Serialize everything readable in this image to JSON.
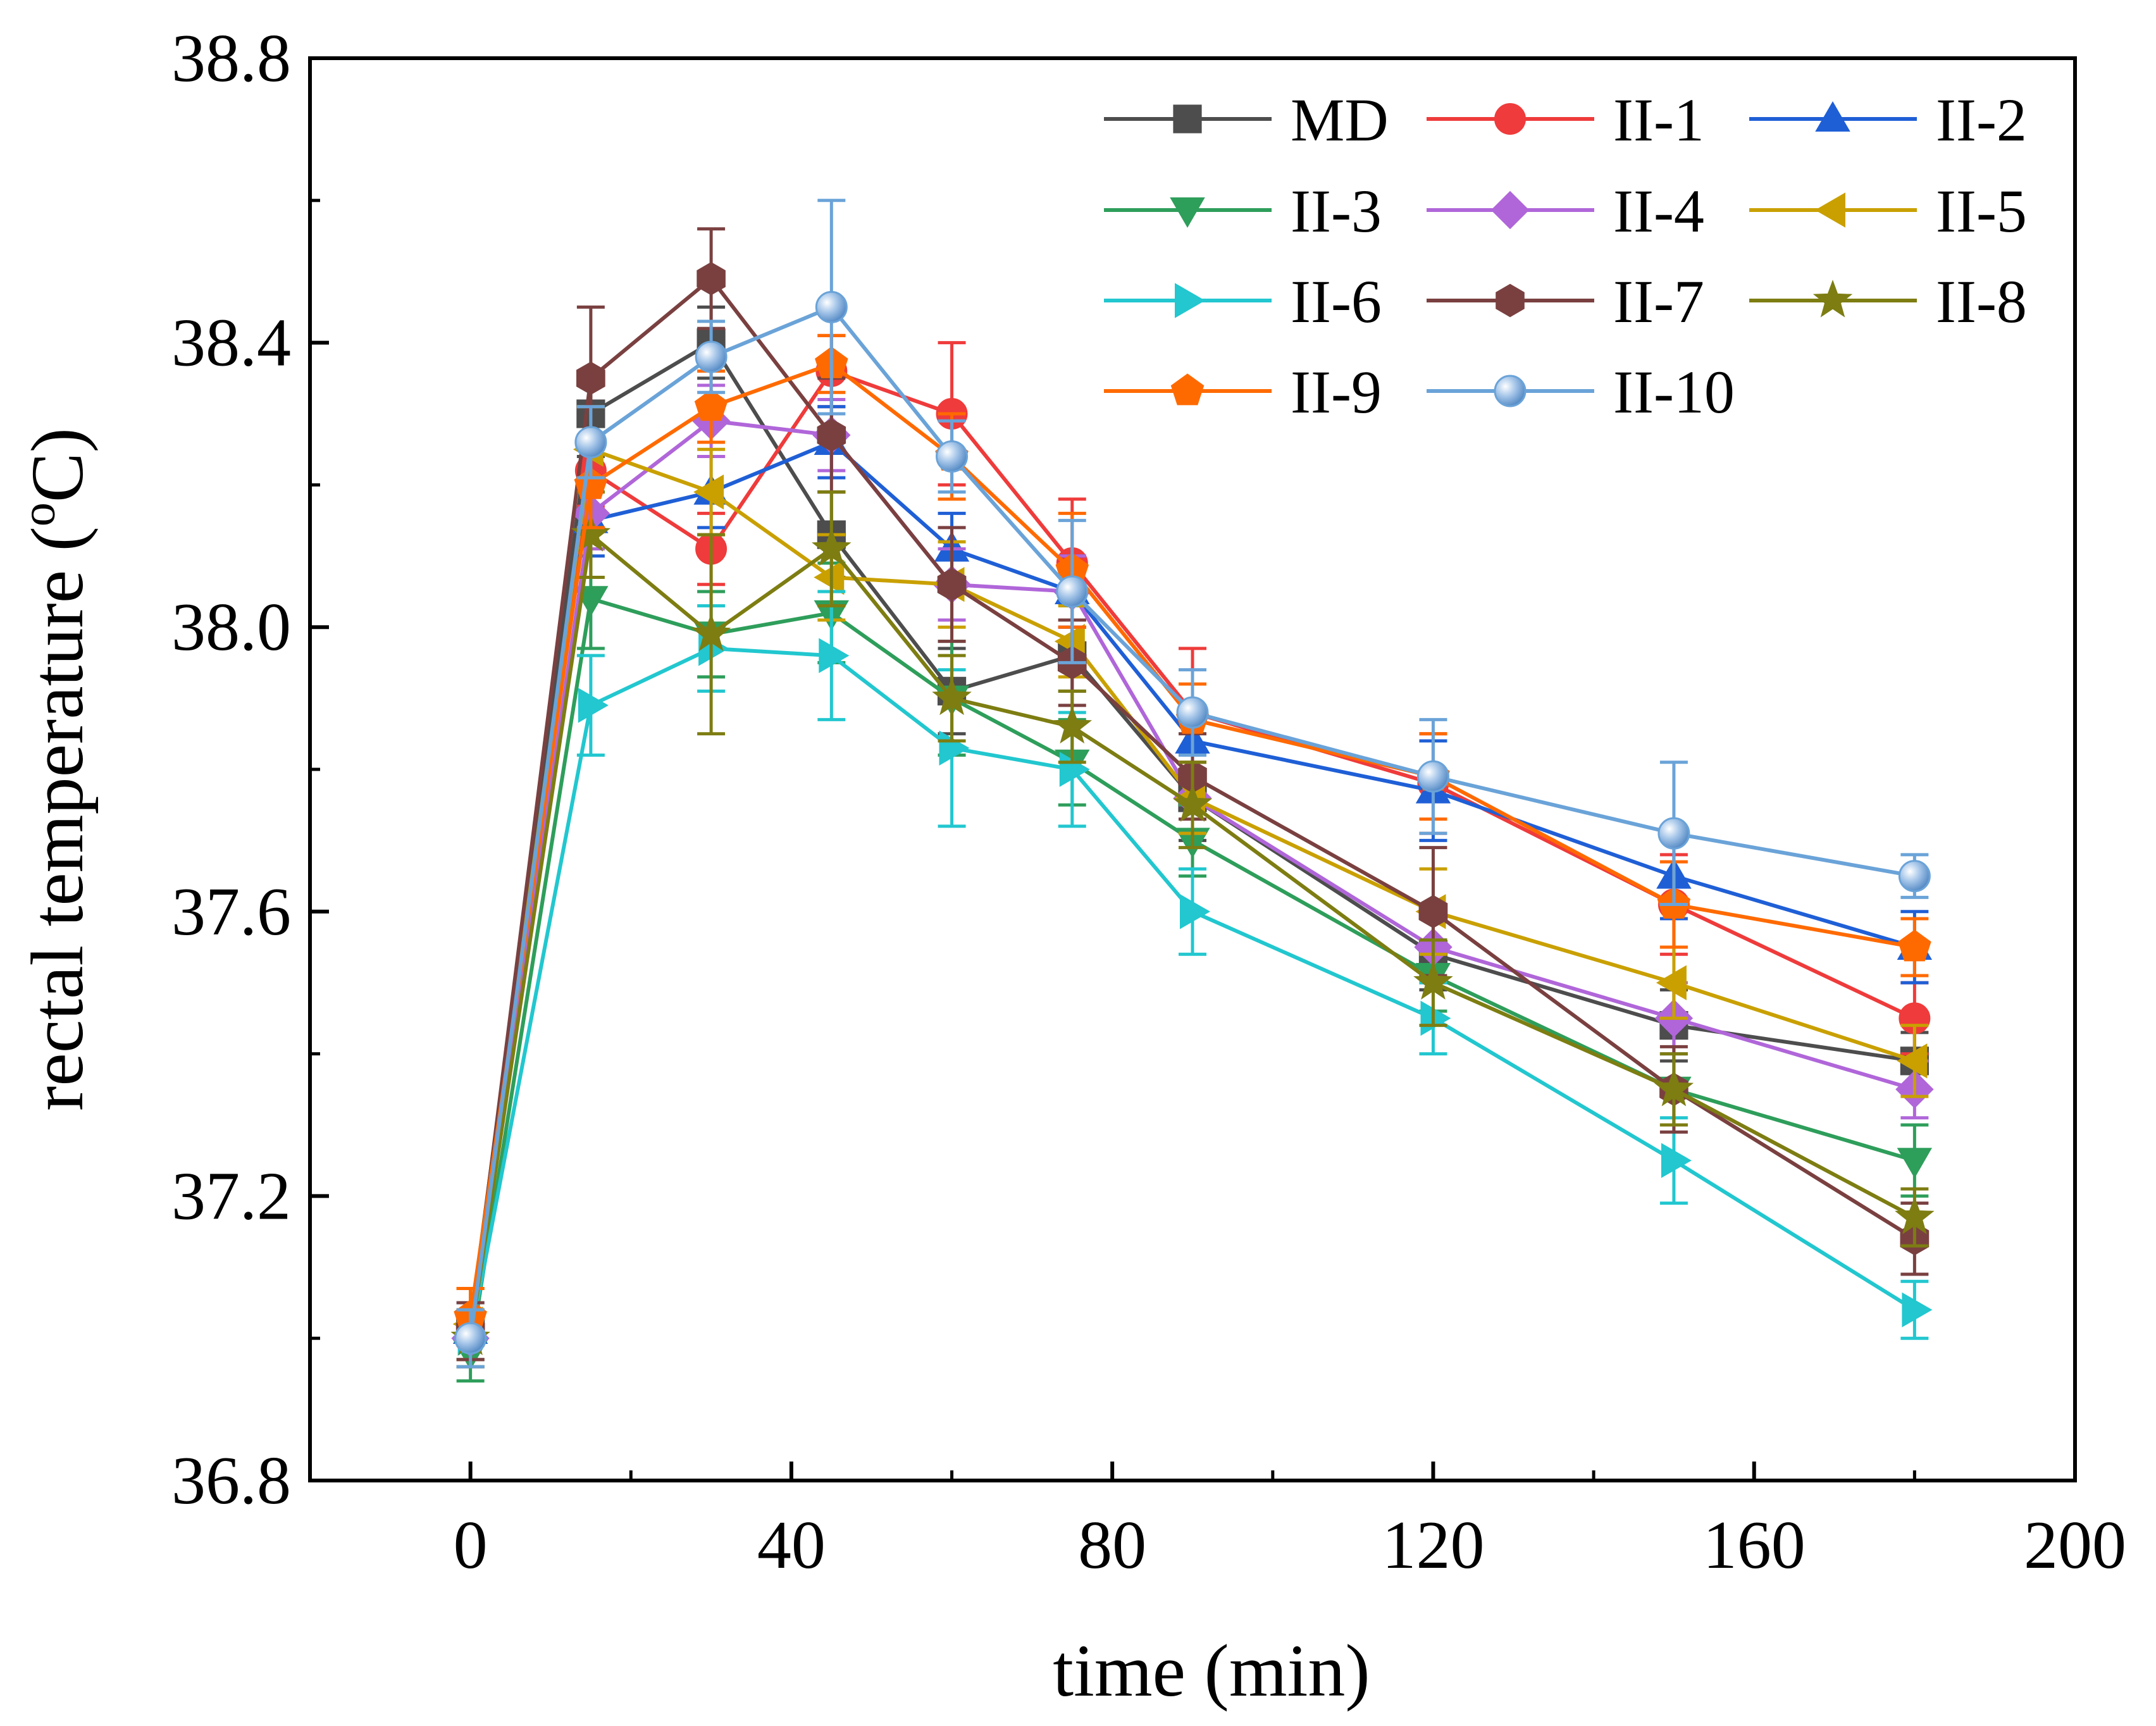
{
  "chart_data": {
    "type": "line",
    "title": "",
    "xlabel": "time (min)",
    "ylabel_main": "rectal temperature (",
    "ylabel_sup": "o",
    "ylabel_unit": "C)",
    "xlim": [
      -20,
      200
    ],
    "ylim": [
      36.8,
      38.8
    ],
    "x_ticks": [
      0,
      40,
      80,
      120,
      160,
      200
    ],
    "x_tick_labels": [
      "0",
      "40",
      "80",
      "120",
      "160",
      "200"
    ],
    "y_ticks": [
      36.8,
      37.2,
      37.6,
      38.0,
      38.4,
      38.8
    ],
    "y_tick_labels": [
      "36.8",
      "37.2",
      "37.6",
      "38.0",
      "38.4",
      "38.8"
    ],
    "grid": false,
    "legend_position": "top-right",
    "x": [
      0,
      15,
      30,
      45,
      60,
      75,
      90,
      120,
      150,
      180
    ],
    "series": [
      {
        "name": "MD",
        "color": "#4d4d4d",
        "marker": "square",
        "values": [
          37.02,
          38.3,
          38.4,
          38.13,
          37.91,
          37.96,
          37.76,
          37.54,
          37.44,
          37.39
        ],
        "errors": [
          0.05,
          0.06,
          0.05,
          0.06,
          0.06,
          0.05,
          0.06,
          0.05,
          0.05,
          0.04
        ]
      },
      {
        "name": "II-1",
        "color": "#ef3b3b",
        "marker": "circle",
        "values": [
          37.0,
          38.22,
          38.11,
          38.36,
          38.3,
          38.09,
          37.88,
          37.78,
          37.61,
          37.45
        ],
        "errors": [
          0.04,
          0.05,
          0.05,
          0.05,
          0.1,
          0.09,
          0.09,
          0.07,
          0.07,
          0.05
        ]
      },
      {
        "name": "II-2",
        "color": "#1f5fd6",
        "marker": "triangle-up",
        "values": [
          37.01,
          38.15,
          38.19,
          38.26,
          38.11,
          38.05,
          37.84,
          37.77,
          37.65,
          37.55
        ],
        "errors": [
          0.04,
          0.05,
          0.05,
          0.05,
          0.05,
          0.05,
          0.05,
          0.07,
          0.06,
          0.05
        ]
      },
      {
        "name": "II-3",
        "color": "#2e9e5b",
        "marker": "triangle-down",
        "values": [
          36.98,
          38.04,
          37.99,
          38.02,
          37.9,
          37.81,
          37.7,
          37.51,
          37.35,
          37.25
        ],
        "errors": [
          0.04,
          0.07,
          0.06,
          0.07,
          0.08,
          0.06,
          0.05,
          0.05,
          0.05,
          0.05
        ]
      },
      {
        "name": "II-4",
        "color": "#b066d9",
        "marker": "diamond",
        "values": [
          37.0,
          38.16,
          38.29,
          38.27,
          38.06,
          38.05,
          37.76,
          37.55,
          37.45,
          37.35
        ],
        "errors": [
          0.04,
          0.05,
          0.05,
          0.05,
          0.05,
          0.05,
          0.05,
          0.05,
          0.05,
          0.04
        ]
      },
      {
        "name": "II-5",
        "color": "#c9a000",
        "marker": "triangle-left",
        "values": [
          37.02,
          38.25,
          38.19,
          38.07,
          38.06,
          37.98,
          37.76,
          37.6,
          37.5,
          37.39
        ],
        "errors": [
          0.05,
          0.06,
          0.06,
          0.06,
          0.06,
          0.05,
          0.05,
          0.06,
          0.05,
          0.05
        ]
      },
      {
        "name": "II-6",
        "color": "#22c7cf",
        "marker": "triangle-right",
        "values": [
          37.0,
          37.89,
          37.97,
          37.96,
          37.83,
          37.8,
          37.6,
          37.45,
          37.25,
          37.04
        ],
        "errors": [
          0.04,
          0.07,
          0.06,
          0.09,
          0.11,
          0.08,
          0.06,
          0.05,
          0.06,
          0.04
        ]
      },
      {
        "name": "II-7",
        "color": "#7a4040",
        "marker": "hexagon",
        "values": [
          37.01,
          38.35,
          38.49,
          38.27,
          38.06,
          37.95,
          37.79,
          37.6,
          37.35,
          37.14
        ],
        "errors": [
          0.04,
          0.1,
          0.07,
          0.08,
          0.08,
          0.06,
          0.06,
          0.09,
          0.06,
          0.05
        ]
      },
      {
        "name": "II-8",
        "color": "#7d7d12",
        "marker": "star",
        "values": [
          37.0,
          38.13,
          37.99,
          38.11,
          37.9,
          37.86,
          37.75,
          37.5,
          37.35,
          37.17
        ],
        "errors": [
          0.04,
          0.06,
          0.14,
          0.08,
          0.06,
          0.05,
          0.06,
          0.06,
          0.05,
          0.04
        ]
      },
      {
        "name": "II-9",
        "color": "#ff6a00",
        "marker": "pentagon",
        "values": [
          37.03,
          38.2,
          38.31,
          38.37,
          38.24,
          38.08,
          37.87,
          37.79,
          37.61,
          37.55
        ],
        "errors": [
          0.04,
          0.06,
          0.05,
          0.04,
          0.06,
          0.08,
          0.05,
          0.06,
          0.06,
          0.04
        ]
      },
      {
        "name": "II-10",
        "color": "#6aa3d8",
        "marker": "sphere",
        "values": [
          37.0,
          38.26,
          38.38,
          38.45,
          38.24,
          38.05,
          37.88,
          37.79,
          37.71,
          37.65
        ],
        "errors": [
          0.04,
          0.05,
          0.05,
          0.15,
          0.05,
          0.1,
          0.06,
          0.08,
          0.1,
          0.03
        ]
      }
    ]
  }
}
